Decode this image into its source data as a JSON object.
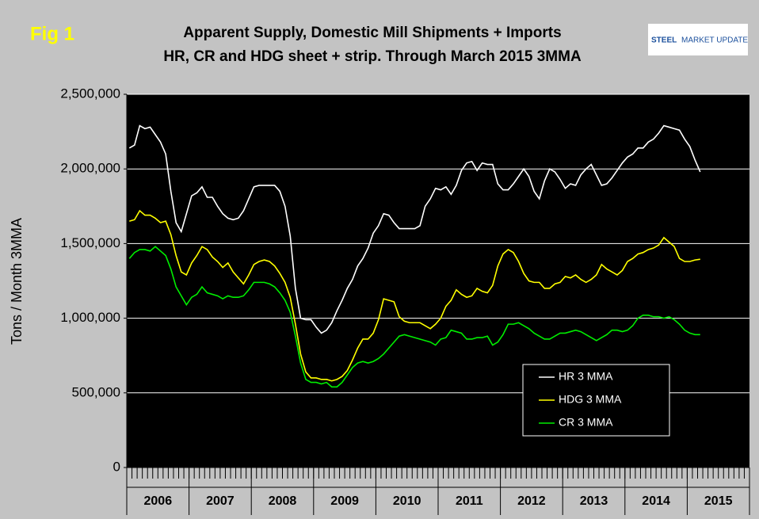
{
  "chart_data": {
    "type": "line",
    "badge": "Fig 1",
    "title": "Apparent Supply, Domestic Mill Shipments + Imports",
    "subtitle": "HR, CR and HDG sheet + strip. Through March 2015 3MMA",
    "logo": {
      "brand": "STEEL",
      "rest": "MARKET UPDATE"
    },
    "y_label": "Tons / Month 3MMA",
    "year_labels": [
      "2006",
      "2007",
      "2008",
      "2009",
      "2010",
      "2011",
      "2012",
      "2013",
      "2014",
      "2015"
    ],
    "ylim": [
      0,
      2500000
    ],
    "yticks": [
      0,
      {
        "value": 500000,
        "label": "500,000"
      },
      {
        "value": 1000000,
        "label": "1,000,000"
      },
      {
        "value": 1500000,
        "label": "1,500,000"
      },
      {
        "value": 2000000,
        "label": "2,000,000"
      },
      {
        "value": 2500000,
        "label": "2,500,000"
      }
    ],
    "grid": true,
    "series": [
      {
        "name": "HR 3 MMA",
        "color": "#ffffff",
        "values": [
          2140000,
          2160000,
          2290000,
          2270000,
          2280000,
          2230000,
          2180000,
          2100000,
          1850000,
          1640000,
          1580000,
          1700000,
          1820000,
          1840000,
          1880000,
          1810000,
          1810000,
          1750000,
          1700000,
          1670000,
          1660000,
          1670000,
          1720000,
          1800000,
          1880000,
          1890000,
          1890000,
          1890000,
          1890000,
          1850000,
          1750000,
          1550000,
          1200000,
          1000000,
          990000,
          990000,
          940000,
          900000,
          920000,
          970000,
          1050000,
          1120000,
          1200000,
          1260000,
          1350000,
          1400000,
          1470000,
          1570000,
          1620000,
          1700000,
          1690000,
          1640000,
          1600000,
          1600000,
          1600000,
          1600000,
          1620000,
          1750000,
          1800000,
          1870000,
          1860000,
          1880000,
          1830000,
          1890000,
          1990000,
          2040000,
          2050000,
          1990000,
          2040000,
          2030000,
          2030000,
          1900000,
          1860000,
          1860000,
          1900000,
          1950000,
          2000000,
          1950000,
          1850000,
          1800000,
          1920000,
          2000000,
          1980000,
          1930000,
          1870000,
          1900000,
          1890000,
          1960000,
          2000000,
          2030000,
          1960000,
          1890000,
          1900000,
          1940000,
          1990000,
          2040000,
          2080000,
          2100000,
          2140000,
          2140000,
          2180000,
          2200000,
          2240000,
          2290000,
          2280000,
          2270000,
          2260000,
          2200000,
          2150000,
          2060000,
          1980000
        ]
      },
      {
        "name": "HDG 3 MMA",
        "color": "#ffff00",
        "values": [
          1650000,
          1660000,
          1720000,
          1690000,
          1690000,
          1670000,
          1640000,
          1650000,
          1560000,
          1420000,
          1310000,
          1290000,
          1370000,
          1420000,
          1480000,
          1460000,
          1410000,
          1380000,
          1340000,
          1370000,
          1310000,
          1270000,
          1230000,
          1290000,
          1360000,
          1380000,
          1390000,
          1380000,
          1350000,
          1300000,
          1240000,
          1140000,
          960000,
          760000,
          640000,
          600000,
          600000,
          590000,
          590000,
          580000,
          590000,
          610000,
          650000,
          720000,
          800000,
          860000,
          860000,
          900000,
          990000,
          1130000,
          1120000,
          1110000,
          1010000,
          980000,
          970000,
          970000,
          970000,
          950000,
          930000,
          960000,
          1000000,
          1080000,
          1120000,
          1190000,
          1160000,
          1140000,
          1150000,
          1200000,
          1180000,
          1170000,
          1220000,
          1350000,
          1430000,
          1460000,
          1440000,
          1380000,
          1300000,
          1250000,
          1240000,
          1240000,
          1200000,
          1200000,
          1230000,
          1240000,
          1280000,
          1270000,
          1290000,
          1260000,
          1240000,
          1260000,
          1290000,
          1360000,
          1330000,
          1310000,
          1290000,
          1320000,
          1380000,
          1400000,
          1430000,
          1440000,
          1460000,
          1470000,
          1490000,
          1540000,
          1510000,
          1480000,
          1400000,
          1380000,
          1380000,
          1390000,
          1395000
        ]
      },
      {
        "name": "CR 3 MMA",
        "color": "#00ee00",
        "values": [
          1400000,
          1440000,
          1460000,
          1460000,
          1450000,
          1480000,
          1450000,
          1420000,
          1330000,
          1210000,
          1150000,
          1090000,
          1140000,
          1160000,
          1210000,
          1170000,
          1160000,
          1150000,
          1130000,
          1150000,
          1140000,
          1140000,
          1150000,
          1190000,
          1240000,
          1240000,
          1240000,
          1230000,
          1210000,
          1170000,
          1120000,
          1040000,
          880000,
          700000,
          590000,
          570000,
          570000,
          560000,
          570000,
          540000,
          540000,
          570000,
          620000,
          670000,
          700000,
          710000,
          700000,
          710000,
          730000,
          760000,
          800000,
          840000,
          880000,
          890000,
          880000,
          870000,
          860000,
          850000,
          840000,
          820000,
          860000,
          870000,
          920000,
          910000,
          900000,
          860000,
          860000,
          870000,
          870000,
          880000,
          820000,
          840000,
          890000,
          960000,
          960000,
          970000,
          950000,
          930000,
          900000,
          880000,
          860000,
          860000,
          880000,
          900000,
          900000,
          910000,
          920000,
          910000,
          890000,
          870000,
          850000,
          870000,
          890000,
          920000,
          920000,
          910000,
          920000,
          950000,
          1000000,
          1020000,
          1020000,
          1010000,
          1010000,
          1000000,
          1010000,
          990000,
          960000,
          920000,
          900000,
          890000,
          890000
        ]
      }
    ]
  }
}
